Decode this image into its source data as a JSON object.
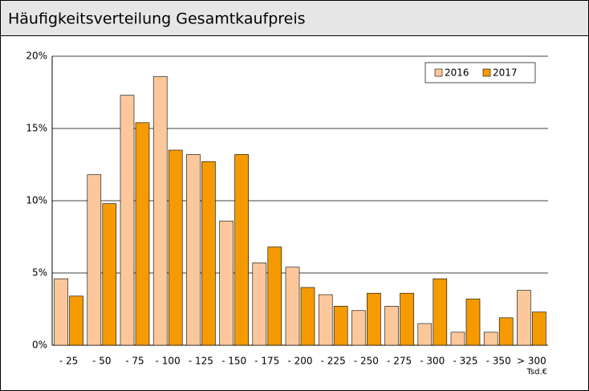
{
  "chart_data": {
    "type": "bar",
    "title": "Häufigkeitsverteilung Gesamtkaufpreis",
    "x_label": "Tsd.€",
    "categories": [
      "- 25",
      "- 50",
      "- 75",
      "- 100",
      "- 125",
      "- 150",
      "- 175",
      "- 200",
      "- 225",
      "- 250",
      "- 275",
      "- 300",
      "- 325",
      "- 350",
      "> 300"
    ],
    "series": [
      {
        "name": "2016",
        "color": "#fcc89b",
        "values": [
          4.6,
          11.8,
          17.3,
          18.6,
          13.2,
          8.6,
          5.7,
          5.4,
          3.5,
          2.4,
          2.7,
          1.5,
          0.9,
          0.9,
          3.8
        ]
      },
      {
        "name": "2017",
        "color": "#f59a00",
        "values": [
          3.4,
          9.8,
          15.4,
          13.5,
          12.7,
          13.2,
          6.8,
          4.0,
          2.7,
          3.6,
          3.6,
          4.6,
          3.2,
          1.9,
          2.3
        ]
      }
    ],
    "ylim": [
      0,
      20
    ],
    "yticks": [
      {
        "value": 0,
        "label": "0%"
      },
      {
        "value": 5,
        "label": "5%"
      },
      {
        "value": 10,
        "label": "10%"
      },
      {
        "value": 15,
        "label": "15%"
      },
      {
        "value": 20,
        "label": "20%"
      }
    ],
    "grid": true,
    "legend": "top-right"
  }
}
